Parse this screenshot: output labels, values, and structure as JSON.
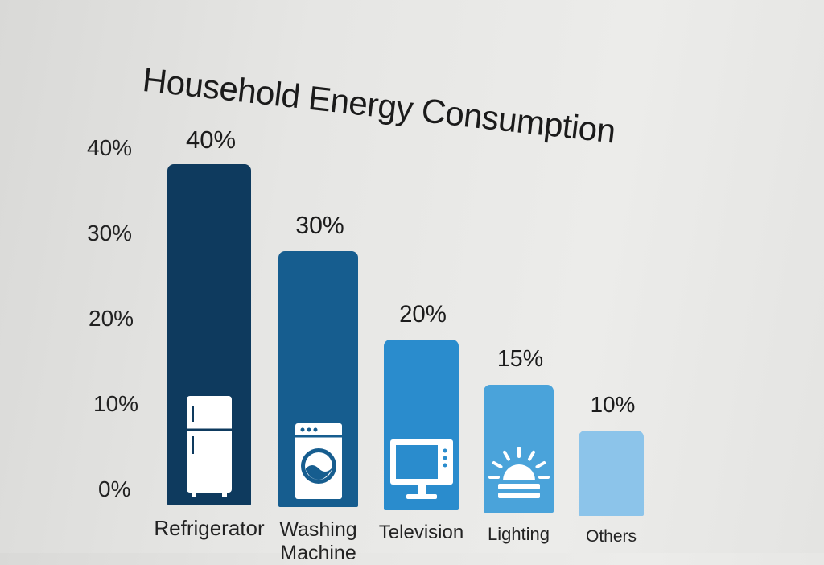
{
  "chart_data": {
    "type": "bar",
    "title": "Household Energy Consumption",
    "categories": [
      "Refrigerator",
      "Washing Machine",
      "Television",
      "Lighting",
      "Others"
    ],
    "values": [
      40,
      30,
      20,
      15,
      10
    ],
    "value_labels": [
      "40%",
      "30%",
      "20%",
      "15%",
      "10%"
    ],
    "y_ticks": [
      "0%",
      "10%",
      "20%",
      "30%",
      "40%"
    ],
    "ylim": [
      0,
      40
    ],
    "xlabel": "",
    "ylabel": "",
    "grid": false,
    "legend": "none",
    "bar_colors": [
      "#0e3a5e",
      "#165d8f",
      "#2a8ccd",
      "#4aa3da",
      "#8cc4ea"
    ],
    "bar_icons": [
      "refrigerator-icon",
      "washing-machine-icon",
      "television-icon",
      "lighting-icon",
      ""
    ]
  }
}
